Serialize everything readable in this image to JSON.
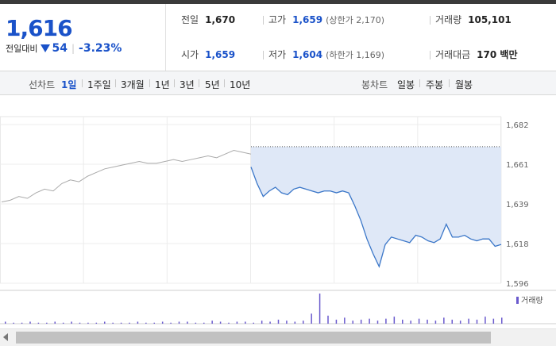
{
  "quote": {
    "price": "1,616",
    "change_label": "전일대비",
    "change_value": "54",
    "change_percent": "-3.23%",
    "direction": "down",
    "down_color": "#1a52c9",
    "stats": {
      "prev_close": {
        "label": "전일",
        "value": "1,670"
      },
      "open": {
        "label": "시가",
        "value": "1,659"
      },
      "high": {
        "label": "고가",
        "value": "1,659",
        "extra": "(상한가 2,170)"
      },
      "low": {
        "label": "저가",
        "value": "1,604",
        "extra": "(하한가 1,169)"
      },
      "volume": {
        "label": "거래량",
        "value": "105,101"
      },
      "trade_value": {
        "label": "거래대금",
        "value": "170 백만"
      }
    }
  },
  "toolbar": {
    "line_label": "선차트",
    "line_periods": [
      "1일",
      "1주일",
      "3개월",
      "1년",
      "3년",
      "5년",
      "10년"
    ],
    "active_period": "1일",
    "candle_label": "봉차트",
    "candle_periods": [
      "일봉",
      "주봉",
      "월봉"
    ]
  },
  "chart_data": {
    "type": "line",
    "y_ticks": [
      "1,682",
      "1,661",
      "1,639",
      "1,618",
      "1,596"
    ],
    "ylim": [
      1596,
      1682
    ],
    "prev_close_line": 1670,
    "prev_day_series": {
      "color": "#aaaaaa",
      "values": [
        1640,
        1641,
        1643,
        1642,
        1645,
        1647,
        1646,
        1650,
        1652,
        1651,
        1654,
        1656,
        1658,
        1659,
        1660,
        1661,
        1662,
        1661,
        1661,
        1662,
        1663,
        1662,
        1663,
        1664,
        1665,
        1664,
        1666,
        1668,
        1667,
        1666
      ]
    },
    "today_series": {
      "color": "#3a76c8",
      "fill": "#dfe8f7",
      "values": [
        1659,
        1650,
        1643,
        1646,
        1648,
        1645,
        1644,
        1647,
        1648,
        1647,
        1646,
        1645,
        1646,
        1646,
        1645,
        1646,
        1645,
        1638,
        1630,
        1620,
        1612,
        1605,
        1617,
        1621,
        1620,
        1619,
        1618,
        1622,
        1621,
        1619,
        1618,
        1620,
        1628,
        1621,
        1621,
        1622,
        1620,
        1619,
        1620,
        1620,
        1616,
        1617
      ]
    },
    "volume": {
      "label": "거래량",
      "color": "#6a5acd",
      "values": [
        2,
        1,
        1,
        2,
        1,
        1,
        2,
        1,
        2,
        1,
        1,
        1,
        2,
        1,
        1,
        1,
        2,
        1,
        1,
        2,
        1,
        2,
        2,
        1,
        1,
        3,
        2,
        1,
        2,
        2,
        1,
        3,
        2,
        4,
        3,
        2,
        3,
        10,
        30,
        8,
        4,
        6,
        3,
        4,
        5,
        3,
        5,
        7,
        4,
        3,
        5,
        4,
        3,
        6,
        4,
        3,
        5,
        4,
        7,
        5,
        6
      ]
    }
  }
}
